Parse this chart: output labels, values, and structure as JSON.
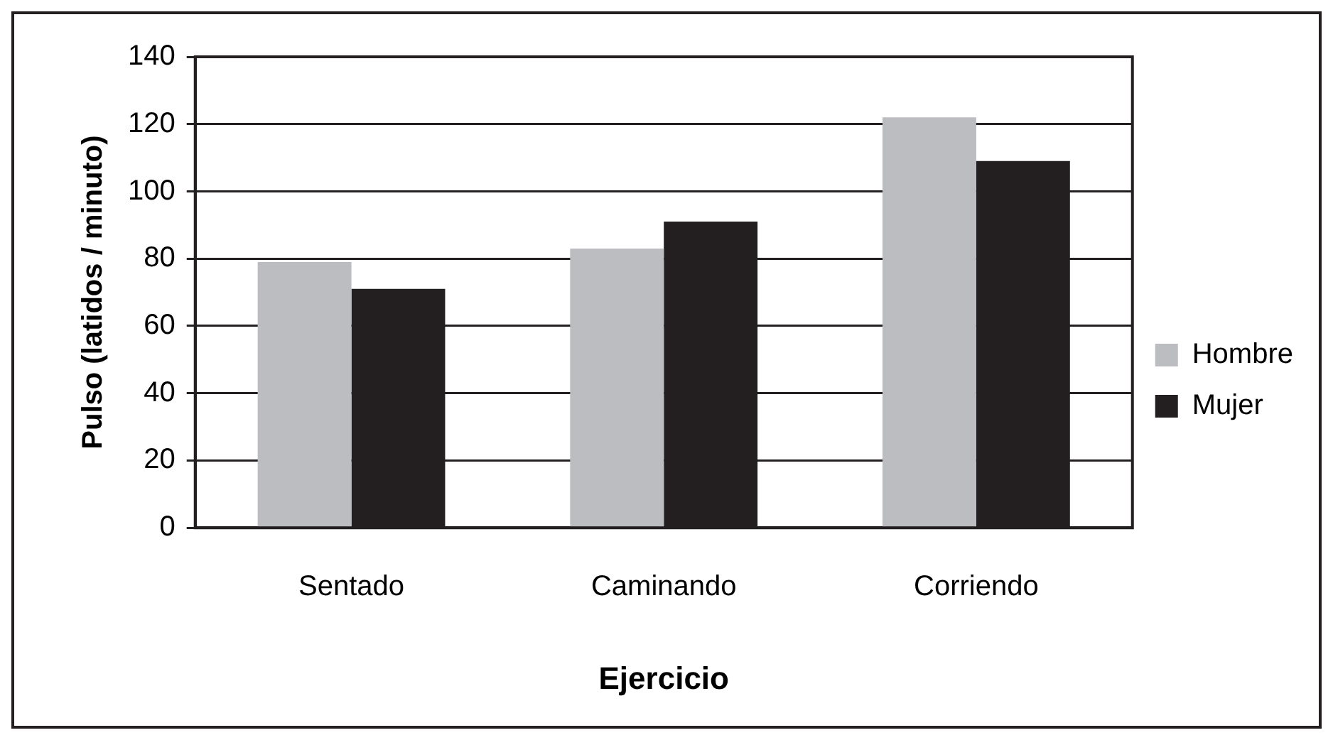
{
  "chart_data": {
    "type": "bar",
    "xlabel": "Ejercicio",
    "ylabel": "Pulso (latidos / minuto)",
    "categories": [
      "Sentado",
      "Caminando",
      "Corriendo"
    ],
    "series": [
      {
        "name": "Hombre",
        "color": "#bcbdc0",
        "values": [
          79,
          83,
          122
        ]
      },
      {
        "name": "Mujer",
        "color": "#231f20",
        "values": [
          71,
          91,
          109
        ]
      }
    ],
    "ylim": [
      0,
      140
    ],
    "yticks": [
      0,
      20,
      40,
      60,
      80,
      100,
      120,
      140
    ],
    "grid": "y",
    "legend": "right"
  }
}
